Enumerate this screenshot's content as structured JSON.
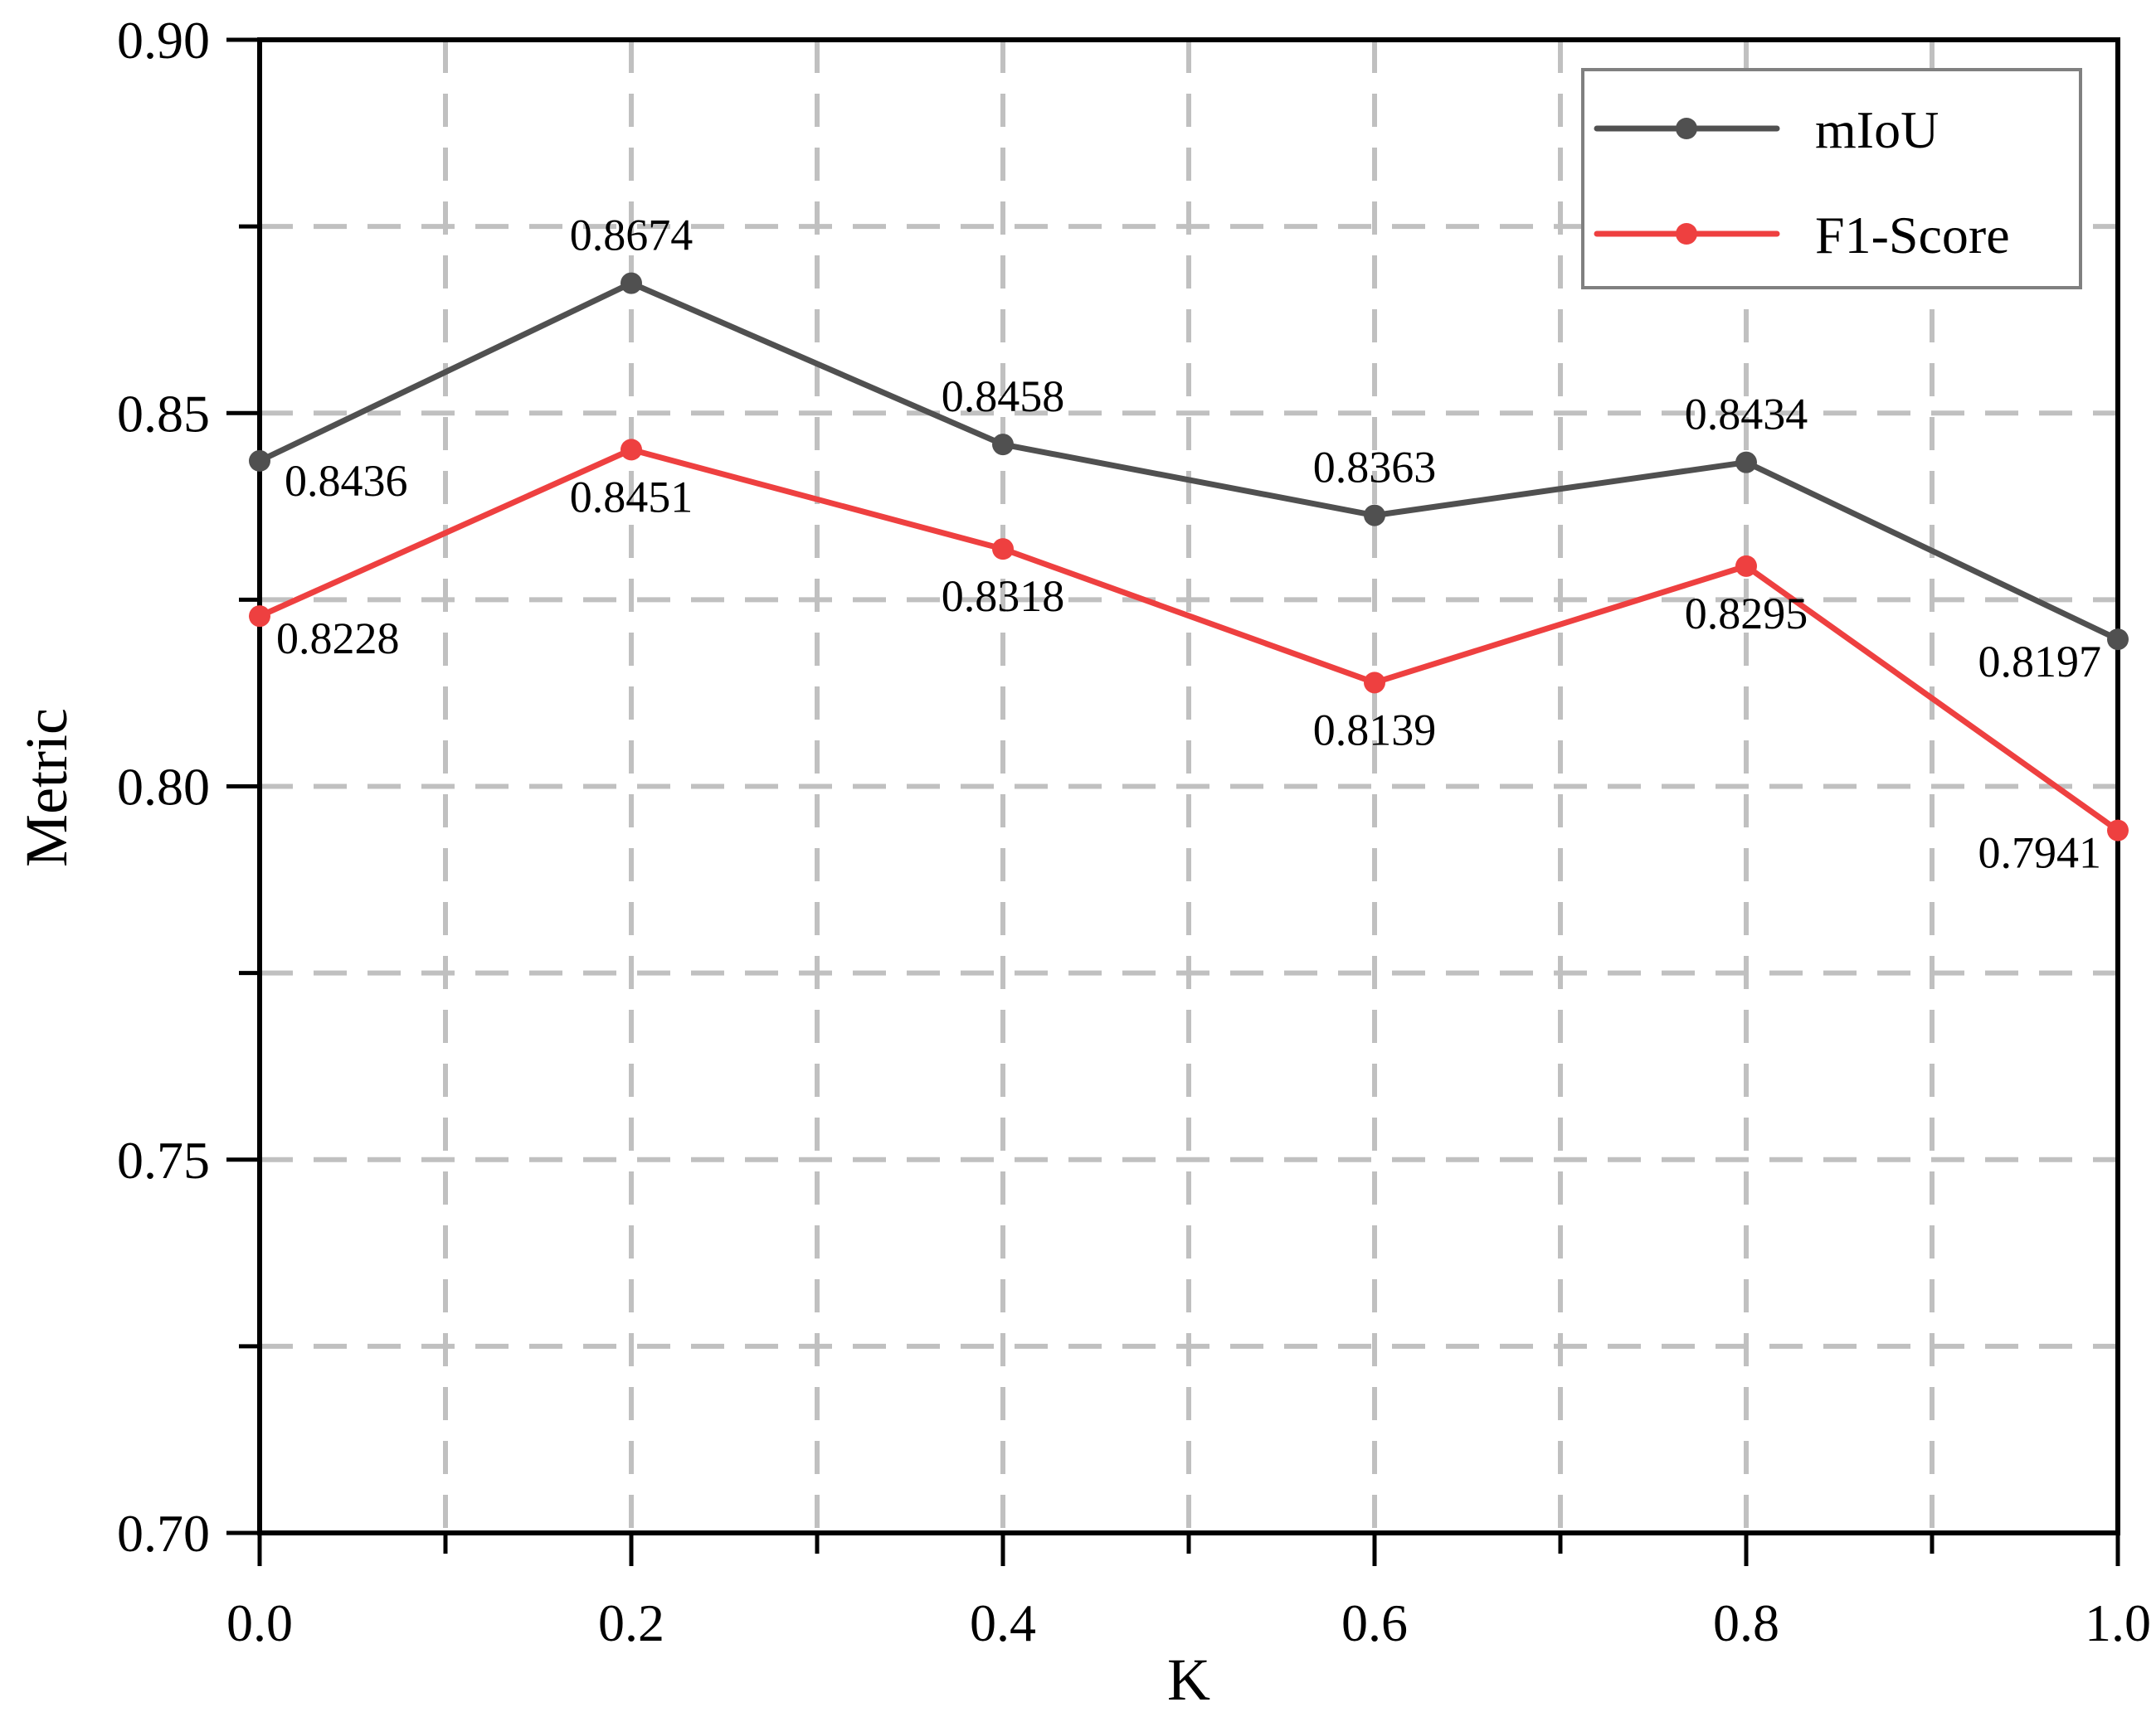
{
  "chart_data": {
    "type": "line",
    "title": "",
    "xlabel": "K",
    "ylabel": "Metric",
    "x": [
      0.0,
      0.2,
      0.4,
      0.6,
      0.8,
      1.0
    ],
    "xticks": [
      "0.0",
      "0.2",
      "0.4",
      "0.6",
      "0.8",
      "1.0"
    ],
    "yticks": [
      "0.70",
      "0.75",
      "0.80",
      "0.85",
      "0.90"
    ],
    "xlim": [
      0.0,
      1.0
    ],
    "ylim": [
      0.7,
      0.9
    ],
    "grid": true,
    "legend_position": "upper right",
    "series": [
      {
        "name": "mIoU",
        "color": "#505050",
        "values": [
          0.8436,
          0.8674,
          0.8458,
          0.8363,
          0.8434,
          0.8197
        ],
        "labels": [
          "0.8436",
          "0.8674",
          "0.8458",
          "0.8363",
          "0.8434",
          "0.8197"
        ]
      },
      {
        "name": "F1-Score",
        "color": "#EE4040",
        "values": [
          0.8228,
          0.8451,
          0.8318,
          0.8139,
          0.8295,
          0.7941
        ],
        "labels": [
          "0.8228",
          "0.8451",
          "0.8318",
          "0.8139",
          "0.8295",
          "0.7941"
        ]
      }
    ]
  },
  "colors": {
    "grid": "#C0C0C0",
    "axis": "#000000",
    "legend_border": "#808080"
  }
}
